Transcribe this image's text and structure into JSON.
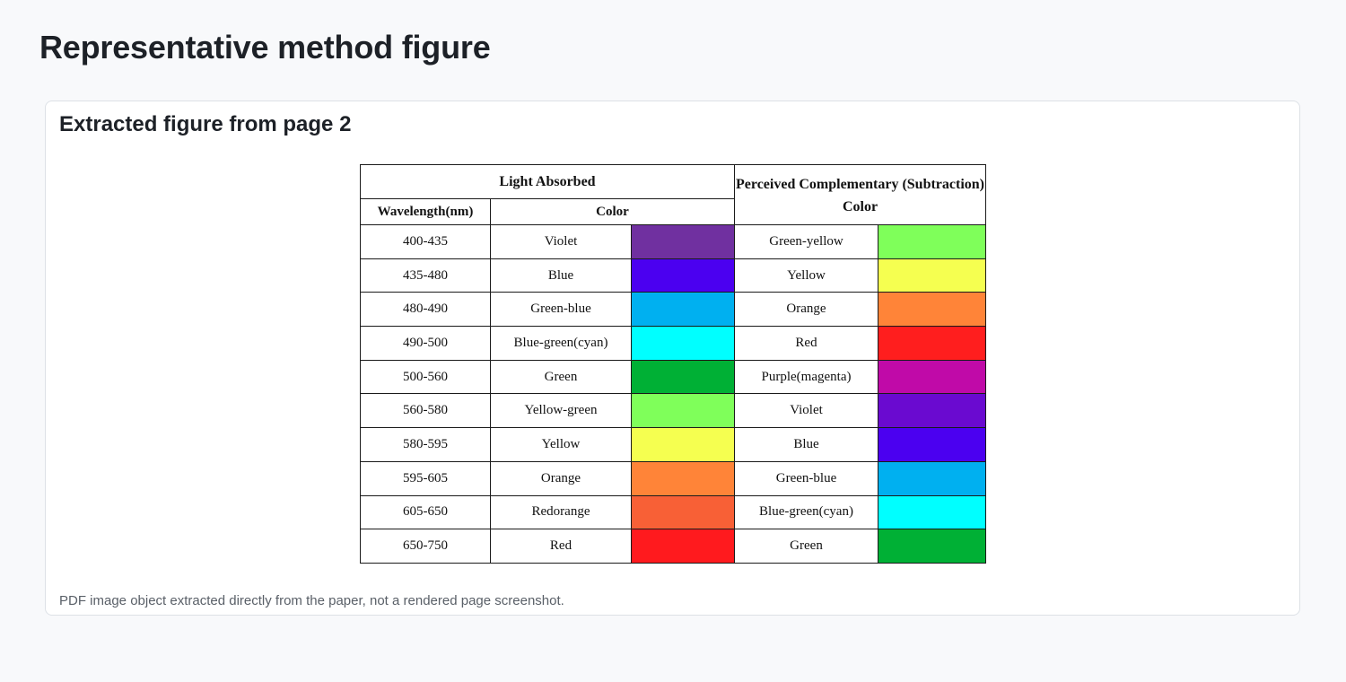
{
  "page": {
    "title": "Representative method figure"
  },
  "card": {
    "title": "Extracted figure from page 2",
    "caption": "PDF image object extracted directly from the paper, not a rendered page screenshot."
  },
  "table": {
    "header": {
      "light_absorbed": "Light Absorbed",
      "perceived": "Perceived Complementary (Subtraction) Color",
      "wavelength": "Wavelength(nm)",
      "color": "Color"
    },
    "rows": [
      {
        "wavelength": "400-435",
        "absorbed": "Violet",
        "absorbed_hex": "#7030a0",
        "perceived": "Green-yellow",
        "perceived_hex": "#7fff5a"
      },
      {
        "wavelength": "435-480",
        "absorbed": "Blue",
        "absorbed_hex": "#4b00f0",
        "perceived": "Yellow",
        "perceived_hex": "#f5ff50"
      },
      {
        "wavelength": "480-490",
        "absorbed": "Green-blue",
        "absorbed_hex": "#00b0f0",
        "perceived": "Orange",
        "perceived_hex": "#ff8438"
      },
      {
        "wavelength": "490-500",
        "absorbed": "Blue-green(cyan)",
        "absorbed_hex": "#00ffff",
        "perceived": "Red",
        "perceived_hex": "#ff1e1e"
      },
      {
        "wavelength": "500-560",
        "absorbed": "Green",
        "absorbed_hex": "#00b035",
        "perceived": "Purple(magenta)",
        "perceived_hex": "#c00aa8"
      },
      {
        "wavelength": "560-580",
        "absorbed": "Yellow-green",
        "absorbed_hex": "#7fff5a",
        "perceived": "Violet",
        "perceived_hex": "#6a0ad0"
      },
      {
        "wavelength": "580-595",
        "absorbed": "Yellow",
        "absorbed_hex": "#f5ff50",
        "perceived": "Blue",
        "perceived_hex": "#4b00f0"
      },
      {
        "wavelength": "595-605",
        "absorbed": "Orange",
        "absorbed_hex": "#ff8438",
        "perceived": "Green-blue",
        "perceived_hex": "#00b0f0"
      },
      {
        "wavelength": "605-650",
        "absorbed": "Redorange",
        "absorbed_hex": "#f86036",
        "perceived": "Blue-green(cyan)",
        "perceived_hex": "#00ffff"
      },
      {
        "wavelength": "650-750",
        "absorbed": "Red",
        "absorbed_hex": "#ff1a1e",
        "perceived": "Green",
        "perceived_hex": "#00b035"
      }
    ]
  }
}
